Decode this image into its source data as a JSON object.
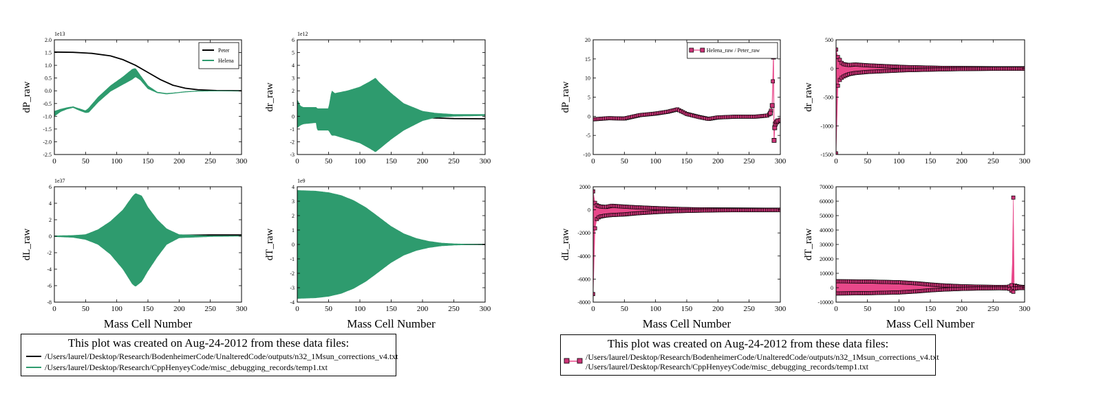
{
  "colors": {
    "peter": "#000000",
    "helena": "#2e9b6e",
    "ratio": "#e8488a",
    "ratio_marker": "#cc3377",
    "marker_edge": "#000000"
  },
  "footnote_left": {
    "title": "This plot was created on Aug-24-2012 from these data files:",
    "files": [
      "/Users/laurel/Desktop/Research/BodenheimerCode/UnalteredCode/outputs/n32_1Msun_corrections_v4.txt",
      "/Users/laurel/Desktop/Research/CppHenyeyCode/misc_debugging_records/temp1.txt"
    ]
  },
  "footnote_right": {
    "title": "This plot was created on Aug-24-2012 from these data files:",
    "files": [
      "/Users/laurel/Desktop/Research/BodenheimerCode/UnalteredCode/outputs/n32_1Msun_corrections_v4.txt",
      "/Users/laurel/Desktop/Research/CppHenyeyCode/misc_debugging_records/temp1.txt"
    ]
  },
  "chart_data": [
    {
      "type": "line",
      "id": "raw-dp",
      "ylabel": "dP_raw",
      "xlabel": "",
      "offset": "1e13",
      "xlim": [
        0,
        300
      ],
      "xticks": [
        0,
        50,
        100,
        150,
        200,
        250,
        300
      ],
      "ylim": [
        -2.5,
        2.0
      ],
      "yticks": [
        "-2.5",
        "-2.0",
        "-1.5",
        "-1.0",
        "-0.5",
        "0.0",
        "0.5",
        "1.0",
        "1.5",
        "2.0"
      ],
      "legend": {
        "loc": "upper right",
        "entries": [
          "Peter",
          "Helena"
        ]
      },
      "series": [
        {
          "name": "Peter",
          "style": "line",
          "color": "#000000",
          "x": [
            0,
            30,
            60,
            90,
            110,
            130,
            150,
            170,
            190,
            210,
            230,
            260,
            300
          ],
          "y": [
            1.52,
            1.51,
            1.47,
            1.37,
            1.22,
            1.0,
            0.72,
            0.44,
            0.22,
            0.1,
            0.04,
            0.01,
            0.0
          ]
        },
        {
          "name": "Helena",
          "style": "band",
          "color": "#2e9b6e",
          "x": [
            0,
            10,
            20,
            30,
            40,
            50,
            55,
            70,
            90,
            110,
            125,
            130,
            138,
            150,
            165,
            180,
            195,
            210,
            230,
            260,
            300
          ],
          "upper": [
            -0.8,
            -0.72,
            -0.66,
            -0.62,
            -0.7,
            -0.78,
            -0.68,
            -0.25,
            0.2,
            0.55,
            0.85,
            0.88,
            0.6,
            0.2,
            -0.05,
            -0.1,
            -0.07,
            -0.03,
            0.0,
            0.0,
            0.0
          ],
          "lower": [
            -1.0,
            -0.82,
            -0.72,
            -0.66,
            -0.77,
            -0.86,
            -0.85,
            -0.45,
            -0.02,
            0.25,
            0.45,
            0.55,
            0.42,
            0.08,
            -0.08,
            -0.13,
            -0.09,
            -0.05,
            -0.02,
            -0.01,
            0.0
          ]
        }
      ]
    },
    {
      "type": "line",
      "id": "raw-dr",
      "ylabel": "dr_raw",
      "xlabel": "",
      "offset": "1e12",
      "xlim": [
        0,
        300
      ],
      "xticks": [
        0,
        50,
        100,
        150,
        200,
        250,
        300
      ],
      "ylim": [
        -3,
        6
      ],
      "yticks": [
        "-3",
        "-2",
        "-1",
        "0",
        "1",
        "2",
        "3",
        "4",
        "5",
        "6"
      ],
      "series": [
        {
          "name": "Peter",
          "style": "line",
          "color": "#000000",
          "x": [
            0,
            50,
            100,
            150,
            200,
            250,
            300
          ],
          "y": [
            0.3,
            0.25,
            0.1,
            0.0,
            -0.1,
            -0.18,
            -0.2
          ]
        },
        {
          "name": "Helena",
          "style": "band",
          "color": "#2e9b6e",
          "x": [
            0,
            5,
            10,
            30,
            32,
            50,
            55,
            60,
            80,
            100,
            115,
            125,
            130,
            150,
            170,
            190,
            200,
            220,
            250,
            300
          ],
          "upper": [
            1.3,
            0.8,
            0.7,
            0.7,
            0.6,
            0.6,
            2.0,
            1.8,
            2.0,
            2.3,
            2.7,
            3.0,
            2.7,
            1.8,
            1.0,
            0.6,
            0.4,
            0.25,
            0.15,
            0.15
          ],
          "lower": [
            -0.9,
            -0.7,
            -0.6,
            -0.5,
            -1.1,
            -1.1,
            -1.5,
            -1.5,
            -1.8,
            -2.1,
            -2.5,
            -2.8,
            -2.6,
            -1.8,
            -1.1,
            -0.6,
            -0.35,
            -0.1,
            0.0,
            0.05
          ]
        }
      ]
    },
    {
      "type": "line",
      "id": "raw-dl",
      "ylabel": "dL_raw",
      "xlabel": "Mass Cell Number",
      "offset": "1e37",
      "xlim": [
        0,
        300
      ],
      "xticks": [
        0,
        50,
        100,
        150,
        200,
        250,
        300
      ],
      "ylim": [
        -8,
        6
      ],
      "yticks": [
        "-8",
        "-6",
        "-4",
        "-2",
        "0",
        "2",
        "4",
        "6"
      ],
      "series": [
        {
          "name": "Peter",
          "style": "line",
          "color": "#000000",
          "x": [
            0,
            100,
            200,
            250,
            300
          ],
          "y": [
            0.0,
            0.02,
            0.12,
            0.15,
            0.15
          ]
        },
        {
          "name": "Helena",
          "style": "band",
          "color": "#2e9b6e",
          "x": [
            0,
            30,
            50,
            70,
            90,
            110,
            125,
            130,
            140,
            150,
            165,
            180,
            200,
            250,
            300
          ],
          "upper": [
            0.05,
            0.1,
            0.2,
            0.8,
            1.8,
            3.2,
            4.8,
            5.2,
            4.9,
            3.5,
            2.0,
            0.9,
            0.2,
            0.05,
            0.05
          ],
          "lower": [
            -0.05,
            -0.15,
            -0.4,
            -1.0,
            -2.2,
            -4.0,
            -5.8,
            -6.1,
            -5.5,
            -4.2,
            -2.5,
            -1.0,
            -0.2,
            -0.05,
            0.0
          ]
        }
      ]
    },
    {
      "type": "line",
      "id": "raw-dt",
      "ylabel": "dT_raw",
      "xlabel": "Mass Cell Number",
      "offset": "1e9",
      "xlim": [
        0,
        300
      ],
      "xticks": [
        0,
        50,
        100,
        150,
        200,
        250,
        300
      ],
      "ylim": [
        -4,
        4
      ],
      "yticks": [
        "-4",
        "-3",
        "-2",
        "-1",
        "0",
        "1",
        "2",
        "3",
        "4"
      ],
      "series": [
        {
          "name": "Peter",
          "style": "line",
          "color": "#000000",
          "x": [
            0,
            150,
            300
          ],
          "y": [
            0.0,
            0.0,
            0.0
          ]
        },
        {
          "name": "Helena",
          "style": "band",
          "color": "#2e9b6e",
          "x": [
            0,
            30,
            50,
            70,
            90,
            110,
            130,
            150,
            170,
            190,
            210,
            230,
            250,
            270,
            300
          ],
          "upper": [
            3.75,
            3.7,
            3.6,
            3.4,
            3.05,
            2.55,
            1.9,
            1.25,
            0.75,
            0.42,
            0.22,
            0.1,
            0.05,
            0.02,
            0.0
          ],
          "lower": [
            -3.75,
            -3.7,
            -3.6,
            -3.4,
            -3.05,
            -2.55,
            -1.9,
            -1.25,
            -0.75,
            -0.42,
            -0.22,
            -0.1,
            -0.05,
            -0.02,
            0.0
          ]
        }
      ]
    },
    {
      "type": "line",
      "id": "ratio-dp",
      "ylabel": "dP_raw",
      "xlabel": "",
      "xlim": [
        0,
        300
      ],
      "xticks": [
        0,
        50,
        100,
        150,
        200,
        250,
        300
      ],
      "ylim": [
        -10,
        20
      ],
      "yticks": [
        "-10",
        "-5",
        "0",
        "5",
        "10",
        "15",
        "20"
      ],
      "legend": {
        "loc": "upper right",
        "entries": [
          "Helena_raw / Peter_raw"
        ]
      },
      "series": [
        {
          "name": "Helena_raw / Peter_raw",
          "style": "markers",
          "color": "#e8488a",
          "x": [
            0,
            25,
            50,
            75,
            100,
            120,
            135,
            150,
            170,
            185,
            200,
            230,
            260,
            280,
            284,
            287,
            289,
            290,
            291,
            292,
            294,
            296,
            300
          ],
          "y": [
            -0.8,
            -0.5,
            -0.6,
            0.3,
            0.7,
            1.2,
            1.8,
            0.6,
            -0.2,
            -0.7,
            -0.3,
            -0.1,
            -0.1,
            0.2,
            0.8,
            2.8,
            15.5,
            -6.3,
            -3.0,
            -2.0,
            -1.5,
            -1.2,
            -1.0
          ]
        }
      ]
    },
    {
      "type": "line",
      "id": "ratio-dr",
      "ylabel": "dr_raw",
      "xlabel": "",
      "xlim": [
        0,
        300
      ],
      "xticks": [
        0,
        50,
        100,
        150,
        200,
        250,
        300
      ],
      "ylim": [
        -1500,
        500
      ],
      "yticks": [
        "-1500",
        "-1000",
        "-500",
        "0",
        "500"
      ],
      "series": [
        {
          "name": "Helena_raw / Peter_raw",
          "style": "band",
          "color": "#e8488a",
          "x": [
            0,
            3,
            6,
            10,
            20,
            30,
            50,
            70,
            90,
            110,
            130,
            150,
            170,
            200,
            250,
            300
          ],
          "upper": [
            330,
            200,
            150,
            80,
            60,
            70,
            55,
            45,
            35,
            25,
            20,
            15,
            10,
            8,
            5,
            5
          ],
          "lower": [
            -1480,
            -300,
            -200,
            -150,
            -100,
            -80,
            -60,
            -50,
            -40,
            -30,
            -25,
            -20,
            -15,
            -10,
            -5,
            -5
          ]
        }
      ]
    },
    {
      "type": "line",
      "id": "ratio-dl",
      "ylabel": "dL_raw",
      "xlabel": "Mass Cell Number",
      "xlim": [
        0,
        300
      ],
      "xticks": [
        0,
        50,
        100,
        150,
        200,
        250,
        300
      ],
      "ylim": [
        -8000,
        2000
      ],
      "yticks": [
        "-8000",
        "-6000",
        "-4000",
        "-2000",
        "0",
        "2000"
      ],
      "series": [
        {
          "name": "Helena_raw / Peter_raw",
          "style": "band",
          "color": "#e8488a",
          "x": [
            0,
            3,
            6,
            10,
            20,
            30,
            50,
            70,
            100,
            130,
            160,
            200,
            250,
            300
          ],
          "upper": [
            1600,
            600,
            400,
            300,
            250,
            350,
            280,
            220,
            150,
            90,
            50,
            30,
            20,
            10
          ],
          "lower": [
            -7300,
            -1600,
            -800,
            -600,
            -500,
            -450,
            -400,
            -300,
            -200,
            -120,
            -80,
            -40,
            -25,
            -15
          ]
        }
      ]
    },
    {
      "type": "line",
      "id": "ratio-dt",
      "ylabel": "dT_raw",
      "xlabel": "Mass Cell Number",
      "xlim": [
        0,
        300
      ],
      "xticks": [
        0,
        50,
        100,
        150,
        200,
        250,
        300
      ],
      "ylim": [
        -10000,
        70000
      ],
      "yticks": [
        "-10000",
        "0",
        "10000",
        "20000",
        "30000",
        "40000",
        "50000",
        "60000",
        "70000"
      ],
      "series": [
        {
          "name": "Helena_raw / Peter_raw",
          "style": "band",
          "color": "#e8488a",
          "x": [
            0,
            50,
            100,
            130,
            150,
            170,
            200,
            230,
            260,
            275,
            280,
            282,
            283,
            285,
            290,
            300
          ],
          "upper": [
            4500,
            4300,
            3800,
            3000,
            2200,
            1600,
            1000,
            700,
            500,
            600,
            2000,
            62500,
            3500,
            1500,
            800,
            400
          ],
          "lower": [
            -4000,
            -3800,
            -3300,
            -2500,
            -1800,
            -1300,
            -800,
            -500,
            -350,
            -500,
            -2500,
            -2800,
            -1500,
            -600,
            -300,
            -200
          ]
        }
      ]
    }
  ]
}
